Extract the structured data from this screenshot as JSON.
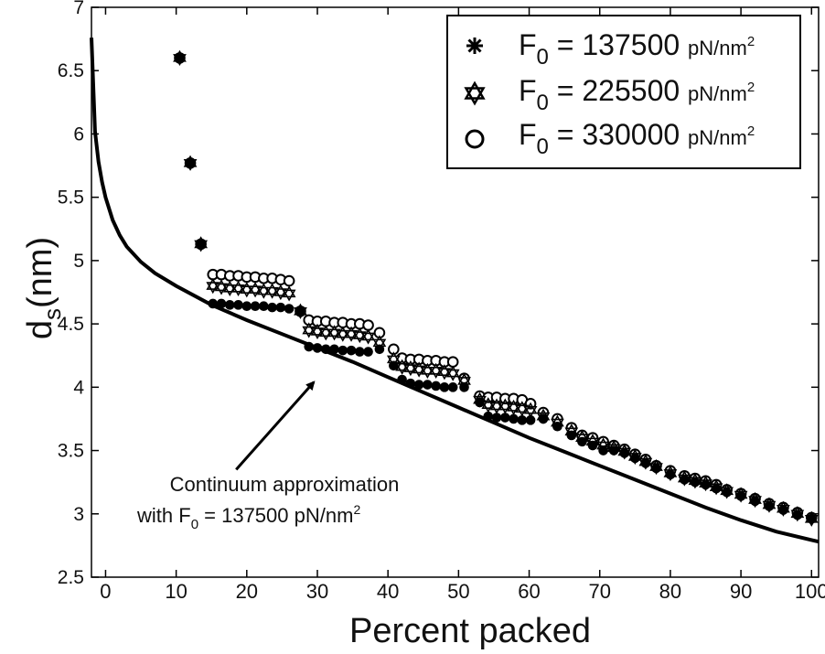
{
  "chart_data": {
    "type": "scatter",
    "xlabel": "Percent packed",
    "ylabel": "d",
    "ylabel_sub": "s",
    "ylabel_unit": "(nm)",
    "xlim": [
      -2,
      101
    ],
    "ylim": [
      2.5,
      7
    ],
    "xticks": [
      0,
      10,
      20,
      30,
      40,
      50,
      60,
      70,
      80,
      90,
      100
    ],
    "yticks": [
      2.5,
      3,
      3.5,
      4,
      4.5,
      5,
      5.5,
      6,
      6.5,
      7
    ],
    "ytick_labels": [
      "2.5",
      "3",
      "3.5",
      "4",
      "4.5",
      "5",
      "5.5",
      "6",
      "6.5",
      "7"
    ],
    "grid": false,
    "legend_position": "top-right",
    "legend": [
      {
        "marker": "asterisk",
        "prefix": "F",
        "sub": "0",
        "value": " = 137500 ",
        "unit": "pN/nm",
        "sup": "2"
      },
      {
        "marker": "star",
        "prefix": "F",
        "sub": "0",
        "value": " = 225500 ",
        "unit": "pN/nm",
        "sup": "2"
      },
      {
        "marker": "circle",
        "prefix": "F",
        "sub": "0",
        "value": " = 330000 ",
        "unit": "pN/nm",
        "sup": "2"
      }
    ],
    "annotation": {
      "line1": "Continuum approximation",
      "line2_prefix": "with F",
      "line2_sub": "0",
      "line2_value": " = 137500 pN/nm",
      "line2_sup": "2",
      "arrow_from": [
        18.5,
        3.35
      ],
      "arrow_to": [
        29.5,
        4.04
      ]
    },
    "continuum_curve": {
      "x": [
        -2,
        -1.5,
        -1,
        -0.5,
        0,
        1,
        2,
        3,
        5,
        7,
        10,
        15,
        20,
        25,
        30,
        35,
        40,
        45,
        50,
        55,
        60,
        65,
        70,
        75,
        80,
        85,
        90,
        95,
        101
      ],
      "y": [
        6.76,
        6.02,
        5.78,
        5.62,
        5.5,
        5.32,
        5.2,
        5.11,
        4.99,
        4.9,
        4.8,
        4.65,
        4.53,
        4.42,
        4.31,
        4.2,
        4.08,
        3.96,
        3.84,
        3.72,
        3.6,
        3.49,
        3.38,
        3.27,
        3.16,
        3.05,
        2.95,
        2.86,
        2.78
      ]
    },
    "series": [
      {
        "name": "F0 = 330000 pN/nm2",
        "marker": "open-circle",
        "x": [
          10.5,
          12.0,
          13.5,
          15.2,
          16.4,
          17.6,
          18.8,
          20.0,
          21.2,
          22.4,
          23.6,
          24.8,
          26.0,
          27.6,
          28.8,
          30.0,
          31.2,
          32.4,
          33.6,
          34.8,
          36.0,
          37.2,
          38.8,
          40.8,
          42.0,
          43.2,
          44.4,
          45.6,
          46.8,
          48.0,
          49.2,
          50.8,
          53.0,
          54.2,
          55.4,
          56.6,
          57.8,
          59.0,
          60.2,
          62.0,
          64.0,
          66.0,
          67.5,
          69.0,
          70.5,
          72.0,
          73.5,
          75.0,
          76.5,
          78.0,
          80.0,
          82.0,
          83.5,
          85.0,
          86.5,
          88.0,
          90.0,
          92.0,
          94.0,
          96.0,
          98.0,
          100.0
        ],
        "y": [
          6.6,
          5.77,
          5.13,
          4.89,
          4.89,
          4.88,
          4.88,
          4.87,
          4.87,
          4.86,
          4.86,
          4.85,
          4.84,
          4.6,
          4.53,
          4.52,
          4.52,
          4.51,
          4.51,
          4.5,
          4.5,
          4.49,
          4.43,
          4.3,
          4.23,
          4.22,
          4.22,
          4.21,
          4.21,
          4.2,
          4.2,
          4.07,
          3.93,
          3.92,
          3.92,
          3.91,
          3.91,
          3.9,
          3.87,
          3.8,
          3.75,
          3.68,
          3.62,
          3.6,
          3.57,
          3.54,
          3.51,
          3.47,
          3.43,
          3.38,
          3.34,
          3.3,
          3.28,
          3.26,
          3.23,
          3.19,
          3.16,
          3.12,
          3.08,
          3.05,
          3.01,
          2.97
        ]
      },
      {
        "name": "F0 = 225500 pN/nm2",
        "marker": "star",
        "x": [
          10.5,
          12.0,
          13.5,
          15.2,
          16.4,
          17.6,
          18.8,
          20.0,
          21.2,
          22.4,
          23.6,
          24.8,
          26.0,
          27.6,
          28.8,
          30.0,
          31.2,
          32.4,
          33.6,
          34.8,
          36.0,
          37.2,
          38.8,
          40.8,
          42.0,
          43.2,
          44.4,
          45.6,
          46.8,
          48.0,
          49.2,
          50.8,
          53.0,
          54.2,
          55.4,
          56.6,
          57.8,
          59.0,
          60.2,
          62.0,
          64.0,
          66.0,
          67.5,
          69.0,
          70.5,
          72.0,
          73.5,
          75.0,
          76.5,
          78.0,
          80.0,
          82.0,
          83.5,
          85.0,
          86.5,
          88.0,
          90.0,
          92.0,
          94.0,
          96.0,
          98.0,
          100.0
        ],
        "y": [
          6.6,
          5.77,
          5.13,
          4.8,
          4.79,
          4.78,
          4.78,
          4.77,
          4.77,
          4.76,
          4.76,
          4.75,
          4.74,
          4.6,
          4.45,
          4.44,
          4.43,
          4.43,
          4.42,
          4.42,
          4.41,
          4.4,
          4.35,
          4.22,
          4.16,
          4.15,
          4.14,
          4.13,
          4.13,
          4.12,
          4.11,
          4.05,
          3.9,
          3.86,
          3.85,
          3.85,
          3.84,
          3.83,
          3.82,
          3.77,
          3.72,
          3.65,
          3.6,
          3.57,
          3.54,
          3.52,
          3.49,
          3.45,
          3.41,
          3.37,
          3.32,
          3.28,
          3.26,
          3.24,
          3.21,
          3.18,
          3.15,
          3.11,
          3.07,
          3.04,
          3.0,
          2.96
        ]
      },
      {
        "name": "F0 = 137500 pN/nm2",
        "marker": "filled",
        "x": [
          10.5,
          12.0,
          13.5,
          15.2,
          16.4,
          17.6,
          18.8,
          20.0,
          21.2,
          22.4,
          23.6,
          24.8,
          26.0,
          27.6,
          28.8,
          30.0,
          31.2,
          32.4,
          33.6,
          34.8,
          36.0,
          37.2,
          38.8,
          40.8,
          42.0,
          43.2,
          44.4,
          45.6,
          46.8,
          48.0,
          49.2,
          50.8,
          53.0,
          54.2,
          55.4,
          56.6,
          57.8,
          59.0,
          60.2,
          62.0,
          64.0,
          66.0,
          67.5,
          69.0,
          70.5,
          72.0,
          73.5,
          75.0,
          76.5,
          78.0,
          80.0,
          82.0,
          83.5,
          85.0,
          86.5,
          88.0,
          90.0,
          92.0,
          94.0,
          96.0,
          98.0,
          100.0
        ],
        "y": [
          6.6,
          5.77,
          5.13,
          4.66,
          4.66,
          4.65,
          4.65,
          4.64,
          4.64,
          4.64,
          4.63,
          4.63,
          4.62,
          4.6,
          4.32,
          4.31,
          4.3,
          4.3,
          4.29,
          4.29,
          4.28,
          4.28,
          4.3,
          4.17,
          4.06,
          4.03,
          4.02,
          4.02,
          4.01,
          4.0,
          4.0,
          4.0,
          3.88,
          3.77,
          3.76,
          3.76,
          3.75,
          3.74,
          3.74,
          3.75,
          3.69,
          3.62,
          3.57,
          3.54,
          3.5,
          3.5,
          3.48,
          3.44,
          3.4,
          3.36,
          3.31,
          3.27,
          3.25,
          3.23,
          3.2,
          3.17,
          3.14,
          3.1,
          3.06,
          3.03,
          2.99,
          2.96
        ]
      }
    ]
  }
}
